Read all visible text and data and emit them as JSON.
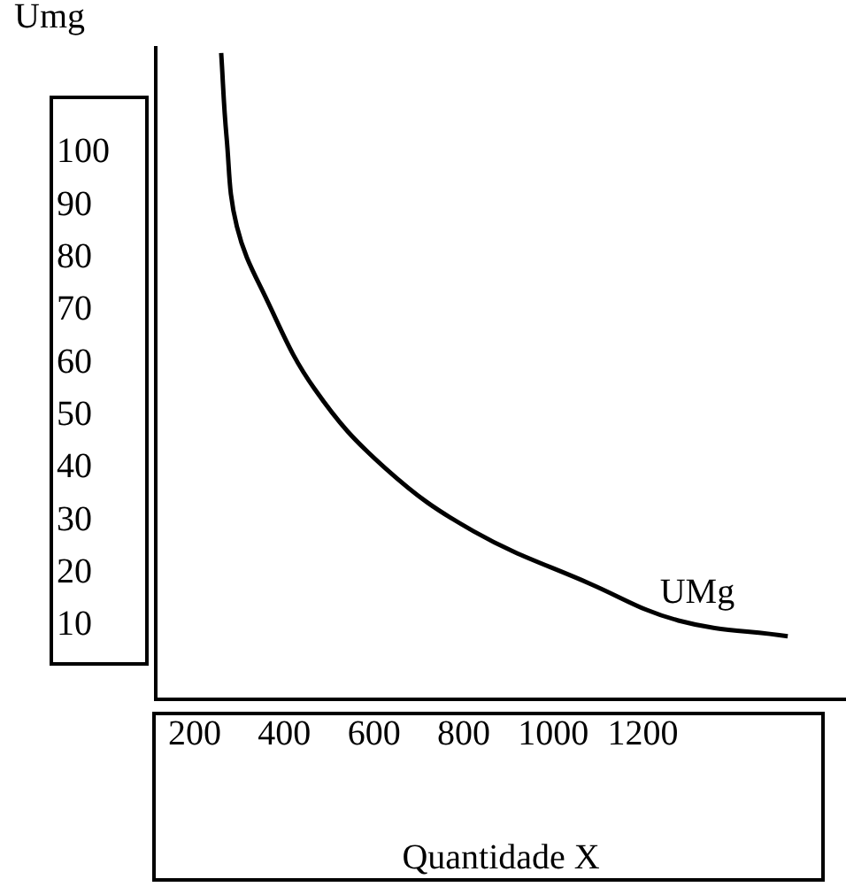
{
  "chart_data": {
    "type": "line",
    "xlabel": "Quantidade X",
    "ylabel": "Umg",
    "x": [
      259,
      271,
      294,
      361,
      468,
      625,
      822,
      1082,
      1279,
      1523
    ],
    "series": [
      {
        "name": "UMg",
        "color": "#000000",
        "values": [
          119,
          103,
          86,
          72,
          55,
          40,
          28,
          18,
          11,
          8
        ]
      }
    ],
    "xlim": [
      113,
      1653
    ],
    "ylim": [
      -4,
      120
    ],
    "xticks": [
      200,
      400,
      600,
      800,
      1000,
      1200
    ],
    "yticks": [
      10,
      20,
      30,
      40,
      50,
      60,
      70,
      80,
      90,
      100
    ],
    "grid": false,
    "marker": "none"
  }
}
